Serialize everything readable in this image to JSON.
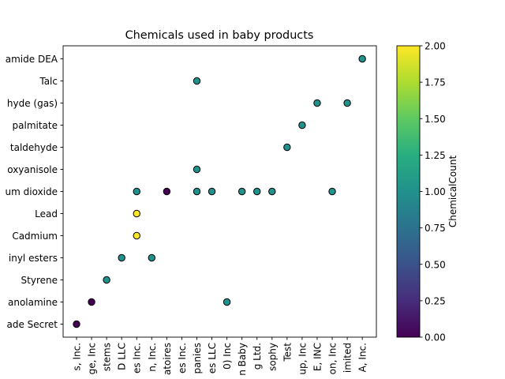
{
  "chart_data": {
    "type": "scatter",
    "title": "Chemicals used in baby products",
    "xlabel": "",
    "ylabel": "",
    "x_categories": [
      "s, Inc.",
      "ge, Inc",
      "stems",
      "D LLC",
      "es Inc.",
      "n, Inc.",
      "atoires",
      "es Inc.",
      "panies",
      "es LLC",
      "0) Inc",
      "n Baby",
      "g Ltd.",
      "sophy",
      "Test",
      "up, Inc",
      "E, INC",
      "on, Inc",
      "imited",
      "A, Inc."
    ],
    "y_categories": [
      "ade Secret",
      "anolamine",
      "Styrene",
      "inyl esters",
      "Cadmium",
      "Lead",
      "um dioxide",
      "oxyanisole",
      "taldehyde",
      "palmitate",
      "hyde (gas)",
      "Talc",
      "amide DEA"
    ],
    "points": [
      {
        "x": "s, Inc.",
        "y": "ade Secret",
        "count": 0
      },
      {
        "x": "ge, Inc",
        "y": "anolamine",
        "count": 0
      },
      {
        "x": "stems",
        "y": "Styrene",
        "count": 1
      },
      {
        "x": "D LLC",
        "y": "inyl esters",
        "count": 1
      },
      {
        "x": "es Inc.",
        "y": "Cadmium",
        "count": 2
      },
      {
        "x": "es Inc.",
        "y": "Lead",
        "count": 2
      },
      {
        "x": "n, Inc.",
        "y": "inyl esters",
        "count": 1
      },
      {
        "x": "atoires",
        "y": "um dioxide",
        "count": 0
      },
      {
        "x": "es Inc.",
        "y": "um dioxide",
        "count": 1
      },
      {
        "x": "panies",
        "y": "um dioxide",
        "count": 1
      },
      {
        "x": "panies",
        "y": "oxyanisole",
        "count": 1
      },
      {
        "x": "panies",
        "y": "Talc",
        "count": 1
      },
      {
        "x": "es LLC",
        "y": "um dioxide",
        "count": 1
      },
      {
        "x": "0) Inc",
        "y": "anolamine",
        "count": 1
      },
      {
        "x": "n Baby",
        "y": "um dioxide",
        "count": 1
      },
      {
        "x": "g Ltd.",
        "y": "um dioxide",
        "count": 1
      },
      {
        "x": "sophy",
        "y": "um dioxide",
        "count": 1
      },
      {
        "x": "Test",
        "y": "taldehyde",
        "count": 1
      },
      {
        "x": "up, Inc",
        "y": "palmitate",
        "count": 1
      },
      {
        "x": "E, INC",
        "y": "hyde (gas)",
        "count": 1
      },
      {
        "x": "on, Inc",
        "y": "um dioxide",
        "count": 1
      },
      {
        "x": "imited",
        "y": "hyde (gas)",
        "count": 1
      },
      {
        "x": "A, Inc.",
        "y": "amide DEA",
        "count": 1
      }
    ],
    "colorbar": {
      "label": "ChemicalCount",
      "colormap": "viridis",
      "range": [
        0.0,
        2.0
      ],
      "ticks": [
        "0.00",
        "0.25",
        "0.50",
        "0.75",
        "1.00",
        "1.25",
        "1.50",
        "1.75",
        "2.00"
      ]
    },
    "grid": false
  }
}
